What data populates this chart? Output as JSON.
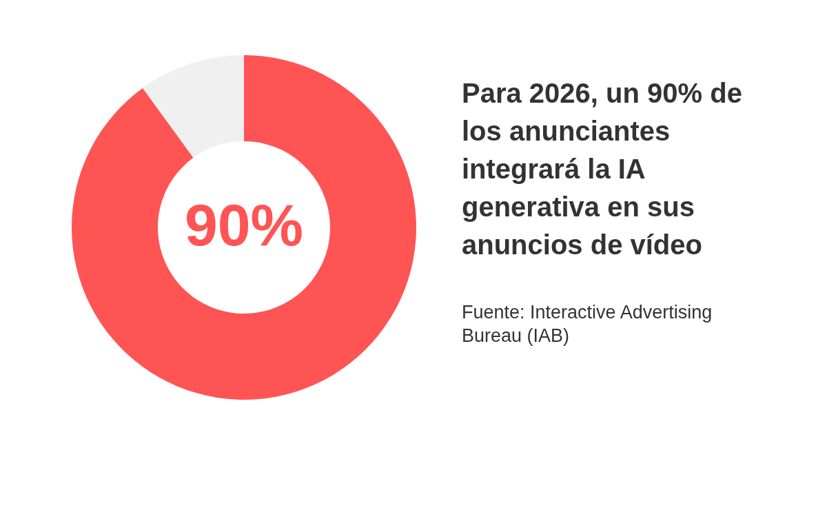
{
  "chart_data": {
    "type": "donut",
    "title": "Para 2026, un 90% de los anunciantes integrará la IA generativa en sus anuncios de vídeo",
    "annotations": [
      "Fuente: Interactive Advertising Bureau (IAB)"
    ],
    "categories": [
      null,
      null
    ],
    "values": [
      90,
      10
    ],
    "colors": [
      "#ff5454",
      "#f0f0f0"
    ],
    "value_labels": [
      "90%",
      null
    ],
    "legend": false
  }
}
